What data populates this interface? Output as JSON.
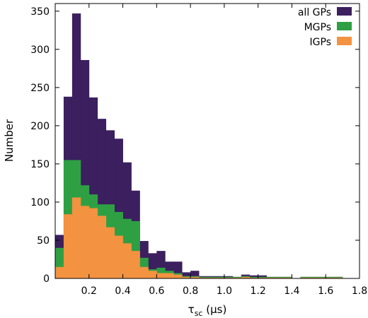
{
  "chart_data": {
    "type": "bar",
    "subtype": "stacked-histogram",
    "xlabel": "τ",
    "xlabel_subscript": "sc",
    "xlabel_unit": " (μs)",
    "ylabel": "Number",
    "xlim": [
      0.0,
      1.8
    ],
    "ylim": [
      0,
      360
    ],
    "x_ticks": [
      0.2,
      0.4,
      0.6,
      0.8,
      1.0,
      1.2,
      1.4,
      1.6,
      1.8
    ],
    "x_tick_labels": [
      "0.2",
      "0.4",
      "0.6",
      "0.8",
      "1.0",
      "1.2",
      "1.4",
      "1.6",
      "1.8"
    ],
    "y_ticks": [
      0,
      50,
      100,
      150,
      200,
      250,
      300,
      350
    ],
    "y_tick_labels": [
      "0",
      "50",
      "100",
      "150",
      "200",
      "250",
      "300",
      "350"
    ],
    "legend_position": "top-right",
    "bin_width": 0.05,
    "bin_starts": [
      0.0,
      0.05,
      0.1,
      0.15,
      0.2,
      0.25,
      0.3,
      0.35,
      0.4,
      0.45,
      0.5,
      0.55,
      0.6,
      0.65,
      0.7,
      0.75,
      0.8,
      0.85,
      0.9,
      0.95,
      1.0,
      1.05,
      1.1,
      1.15,
      1.2,
      1.25,
      1.3,
      1.35,
      1.4,
      1.45,
      1.5,
      1.55,
      1.6,
      1.65,
      1.7,
      1.75
    ],
    "series": [
      {
        "name": "all GPs",
        "color": "#3b1f5e",
        "values": [
          57,
          238,
          347,
          286,
          237,
          209,
          194,
          183,
          152,
          115,
          49,
          33,
          36,
          22,
          22,
          8,
          10,
          3,
          3,
          3,
          3,
          2,
          5,
          4,
          4,
          2,
          2,
          2,
          0,
          2,
          2,
          2,
          2,
          2,
          0,
          0
        ]
      },
      {
        "name": "MGPs",
        "color": "#2ea043",
        "values": [
          40,
          155,
          155,
          122,
          110,
          97,
          97,
          87,
          78,
          75,
          27,
          12,
          14,
          10,
          7,
          3,
          3,
          2,
          2,
          2,
          2,
          2,
          3,
          2,
          2,
          2,
          2,
          2,
          0,
          2,
          2,
          2,
          2,
          2,
          0,
          0
        ]
      },
      {
        "name": "IGPs",
        "color": "#f39240",
        "values": [
          15,
          84,
          106,
          95,
          92,
          82,
          67,
          56,
          46,
          36,
          15,
          10,
          7,
          7,
          5,
          2,
          2,
          1,
          1,
          1,
          1,
          1,
          2,
          1,
          1,
          1,
          1,
          1,
          0,
          1,
          1,
          1,
          1,
          1,
          0,
          0
        ]
      }
    ]
  }
}
